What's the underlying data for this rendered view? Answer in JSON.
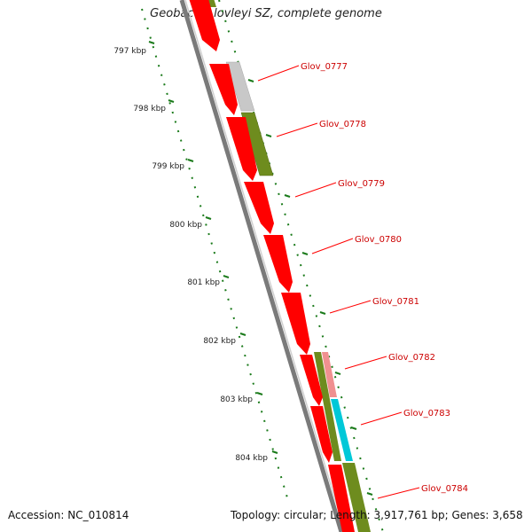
{
  "title": "Geobacter lovleyi SZ, complete genome",
  "accession": "Accession: NC_010814",
  "summary": "Topology: circular; Length: 3,917,761 bp; Genes: 3,658",
  "ticks": [
    "797 kbp",
    "798 kbp",
    "799 kbp",
    "800 kbp",
    "801 kbp",
    "802 kbp",
    "803 kbp",
    "804 kbp"
  ],
  "genes": [
    "Glov_0777",
    "Glov_0778",
    "Glov_0779",
    "Glov_0780",
    "Glov_0781",
    "Glov_0782",
    "Glov_0783",
    "Glov_0784"
  ],
  "colors": {
    "cds": "#ff0000",
    "gene_label": "#cc0000",
    "tick": "#1a7a1a",
    "backbone": "#777777",
    "cog_gray": "#c8c8c8",
    "cog_olive": "#6e8c1e",
    "cog_pink": "#f09090",
    "cog_cyan": "#00c8d8"
  }
}
